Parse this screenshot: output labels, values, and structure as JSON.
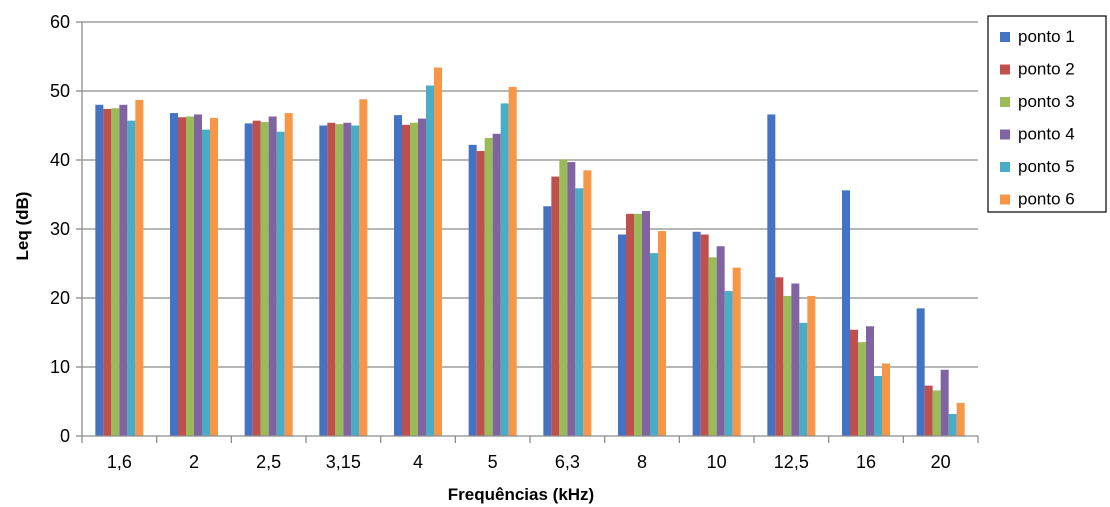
{
  "chart_data": {
    "type": "bar",
    "title": "",
    "xlabel": "Frequências (kHz)",
    "ylabel": "Leq (dB)",
    "ylim": [
      0,
      60
    ],
    "yticks": [
      0,
      10,
      20,
      30,
      40,
      50,
      60
    ],
    "grid": true,
    "legend_position": "right",
    "categories": [
      "1,6",
      "2",
      "2,5",
      "3,15",
      "4",
      "5",
      "6,3",
      "8",
      "10",
      "12,5",
      "16",
      "20"
    ],
    "series": [
      {
        "name": "ponto 1",
        "color": "#4472C4",
        "values": [
          48.0,
          46.8,
          45.3,
          45.0,
          46.5,
          42.2,
          33.3,
          29.2,
          29.6,
          46.6,
          35.6,
          18.5
        ]
      },
      {
        "name": "ponto 2",
        "color": "#C0504D",
        "values": [
          47.4,
          46.2,
          45.7,
          45.4,
          45.1,
          41.3,
          37.6,
          32.2,
          29.2,
          23.0,
          15.4,
          7.3
        ]
      },
      {
        "name": "ponto 3",
        "color": "#9BBB59",
        "values": [
          47.5,
          46.3,
          45.5,
          45.2,
          45.4,
          43.2,
          40.1,
          32.2,
          25.9,
          20.3,
          13.6,
          6.6
        ]
      },
      {
        "name": "ponto 4",
        "color": "#8064A2",
        "values": [
          48.0,
          46.6,
          46.3,
          45.4,
          46.0,
          43.8,
          39.7,
          32.6,
          27.5,
          22.1,
          15.9,
          9.6
        ]
      },
      {
        "name": "ponto 5",
        "color": "#4BACC6",
        "values": [
          45.7,
          44.4,
          44.1,
          45.0,
          50.8,
          48.2,
          35.9,
          26.5,
          21.0,
          16.4,
          8.7,
          3.2
        ]
      },
      {
        "name": "ponto 6",
        "color": "#F79646",
        "values": [
          48.7,
          46.1,
          46.8,
          48.8,
          53.4,
          50.6,
          38.5,
          29.7,
          24.4,
          20.3,
          10.5,
          4.8
        ]
      }
    ]
  }
}
